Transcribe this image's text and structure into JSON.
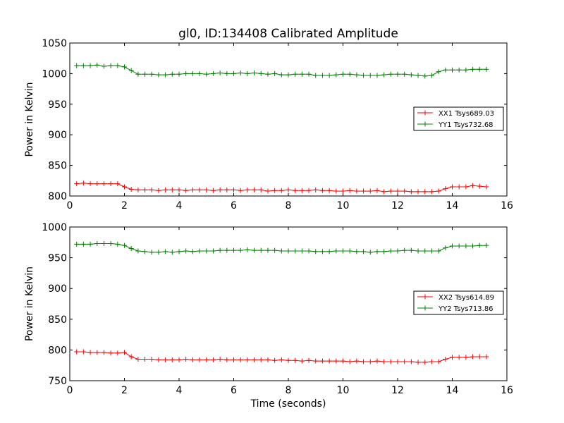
{
  "title": "gl0, ID:134408 Calibrated Amplitude",
  "colors": {
    "red": "#ff0000",
    "green": "#008000"
  },
  "chart_data": [
    {
      "type": "line",
      "title": "gl0, ID:134408 Calibrated Amplitude",
      "xlabel": "",
      "ylabel": "Power in Kelvin",
      "xlim": [
        0,
        16
      ],
      "ylim": [
        800,
        1050
      ],
      "xticks": [
        "0",
        "2",
        "4",
        "6",
        "8",
        "10",
        "12",
        "14",
        "16"
      ],
      "yticks": [
        "800",
        "850",
        "900",
        "950",
        "1000",
        "1050"
      ],
      "legend_position": "right",
      "x": [
        0.25,
        0.5,
        0.75,
        1.0,
        1.25,
        1.5,
        1.75,
        2.0,
        2.25,
        2.5,
        2.75,
        3.0,
        3.25,
        3.5,
        3.75,
        4.0,
        4.25,
        4.5,
        4.75,
        5.0,
        5.25,
        5.5,
        5.75,
        6.0,
        6.25,
        6.5,
        6.75,
        7.0,
        7.25,
        7.5,
        7.75,
        8.0,
        8.25,
        8.5,
        8.75,
        9.0,
        9.25,
        9.5,
        9.75,
        10.0,
        10.25,
        10.5,
        10.75,
        11.0,
        11.25,
        11.5,
        11.75,
        12.0,
        12.25,
        12.5,
        12.75,
        13.0,
        13.25,
        13.5,
        13.75,
        14.0,
        14.25,
        14.5,
        14.75,
        15.0,
        15.25
      ],
      "series": [
        {
          "name": "XX1 Tsys689.03",
          "color": "#ff0000",
          "values": [
            820,
            821,
            820,
            820,
            820,
            820,
            820,
            815,
            811,
            810,
            810,
            810,
            809,
            810,
            810,
            810,
            809,
            810,
            810,
            810,
            809,
            810,
            810,
            810,
            809,
            810,
            810,
            810,
            808,
            809,
            809,
            810,
            809,
            809,
            809,
            810,
            809,
            809,
            808,
            808,
            809,
            808,
            808,
            808,
            809,
            807,
            808,
            808,
            808,
            807,
            807,
            807,
            807,
            808,
            812,
            815,
            815,
            815,
            817,
            816,
            815
          ]
        },
        {
          "name": "YY1 Tsys732.68",
          "color": "#008000",
          "values": [
            1013,
            1013,
            1013,
            1014,
            1012,
            1013,
            1013,
            1011,
            1005,
            999,
            999,
            999,
            998,
            998,
            999,
            999,
            1000,
            1000,
            1000,
            999,
            1000,
            1001,
            1000,
            1000,
            1001,
            1000,
            1001,
            1000,
            999,
            1000,
            998,
            998,
            999,
            999,
            999,
            997,
            997,
            997,
            998,
            999,
            999,
            998,
            997,
            997,
            997,
            998,
            999,
            999,
            999,
            998,
            997,
            996,
            997,
            1003,
            1006,
            1006,
            1006,
            1006,
            1007,
            1007,
            1007
          ]
        }
      ]
    },
    {
      "type": "line",
      "title": "",
      "xlabel": "Time (seconds)",
      "ylabel": "Power in Kelvin",
      "xlim": [
        0,
        16
      ],
      "ylim": [
        750,
        1000
      ],
      "xticks": [
        "0",
        "2",
        "4",
        "6",
        "8",
        "10",
        "12",
        "14",
        "16"
      ],
      "yticks": [
        "750",
        "800",
        "850",
        "900",
        "950",
        "1000"
      ],
      "legend_position": "right",
      "x": [
        0.25,
        0.5,
        0.75,
        1.0,
        1.25,
        1.5,
        1.75,
        2.0,
        2.25,
        2.5,
        2.75,
        3.0,
        3.25,
        3.5,
        3.75,
        4.0,
        4.25,
        4.5,
        4.75,
        5.0,
        5.25,
        5.5,
        5.75,
        6.0,
        6.25,
        6.5,
        6.75,
        7.0,
        7.25,
        7.5,
        7.75,
        8.0,
        8.25,
        8.5,
        8.75,
        9.0,
        9.25,
        9.5,
        9.75,
        10.0,
        10.25,
        10.5,
        10.75,
        11.0,
        11.25,
        11.5,
        11.75,
        12.0,
        12.25,
        12.5,
        12.75,
        13.0,
        13.25,
        13.5,
        13.75,
        14.0,
        14.25,
        14.5,
        14.75,
        15.0,
        15.25
      ],
      "series": [
        {
          "name": "XX2 Tsys614.89",
          "color": "#ff0000",
          "values": [
            797,
            797,
            796,
            796,
            796,
            795,
            795,
            796,
            789,
            785,
            785,
            785,
            784,
            784,
            784,
            784,
            785,
            784,
            784,
            784,
            784,
            785,
            784,
            784,
            784,
            784,
            784,
            784,
            784,
            783,
            784,
            783,
            783,
            782,
            783,
            782,
            782,
            782,
            782,
            782,
            781,
            782,
            781,
            781,
            782,
            781,
            781,
            781,
            781,
            781,
            780,
            780,
            781,
            781,
            785,
            788,
            788,
            788,
            789,
            789,
            789
          ]
        },
        {
          "name": "YY2 Tsys713.86",
          "color": "#008000",
          "values": [
            972,
            972,
            972,
            973,
            973,
            973,
            972,
            970,
            965,
            961,
            960,
            959,
            959,
            960,
            959,
            960,
            961,
            960,
            961,
            961,
            961,
            962,
            962,
            962,
            962,
            963,
            962,
            962,
            962,
            962,
            961,
            961,
            961,
            961,
            961,
            960,
            960,
            960,
            961,
            961,
            961,
            960,
            960,
            959,
            960,
            960,
            961,
            961,
            962,
            962,
            961,
            961,
            961,
            961,
            966,
            969,
            969,
            969,
            969,
            970,
            970
          ]
        }
      ]
    }
  ]
}
